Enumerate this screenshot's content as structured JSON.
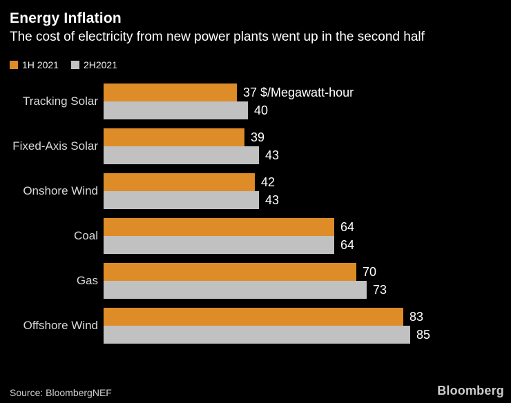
{
  "header": {
    "title": "Energy Inflation",
    "subtitle": "The cost of electricity from new power plants went up in the second half"
  },
  "legend": [
    {
      "label": "1H 2021",
      "color": "#dd8c28"
    },
    {
      "label": "2H2021",
      "color": "#c1c1c1"
    }
  ],
  "chart_data": {
    "type": "bar",
    "orientation": "horizontal",
    "title": "Energy Inflation",
    "subtitle": "The cost of electricity from new power plants went up in the second half",
    "unit_label": "$/Megawatt-hour",
    "categories": [
      "Tracking Solar",
      "Fixed-Axis Solar",
      "Onshore Wind",
      "Coal",
      "Gas",
      "Offshore Wind"
    ],
    "series": [
      {
        "name": "1H 2021",
        "color": "#dd8c28",
        "values": [
          37,
          39,
          42,
          64,
          70,
          83
        ]
      },
      {
        "name": "2H2021",
        "color": "#c1c1c1",
        "values": [
          40,
          43,
          43,
          64,
          73,
          85
        ]
      }
    ],
    "xlim": [
      0,
      85
    ],
    "grid": false,
    "legend_position": "top-left",
    "value_labels": "outside-end"
  },
  "footer": {
    "source": "Source: BloombergNEF",
    "brand": "Bloomberg"
  }
}
